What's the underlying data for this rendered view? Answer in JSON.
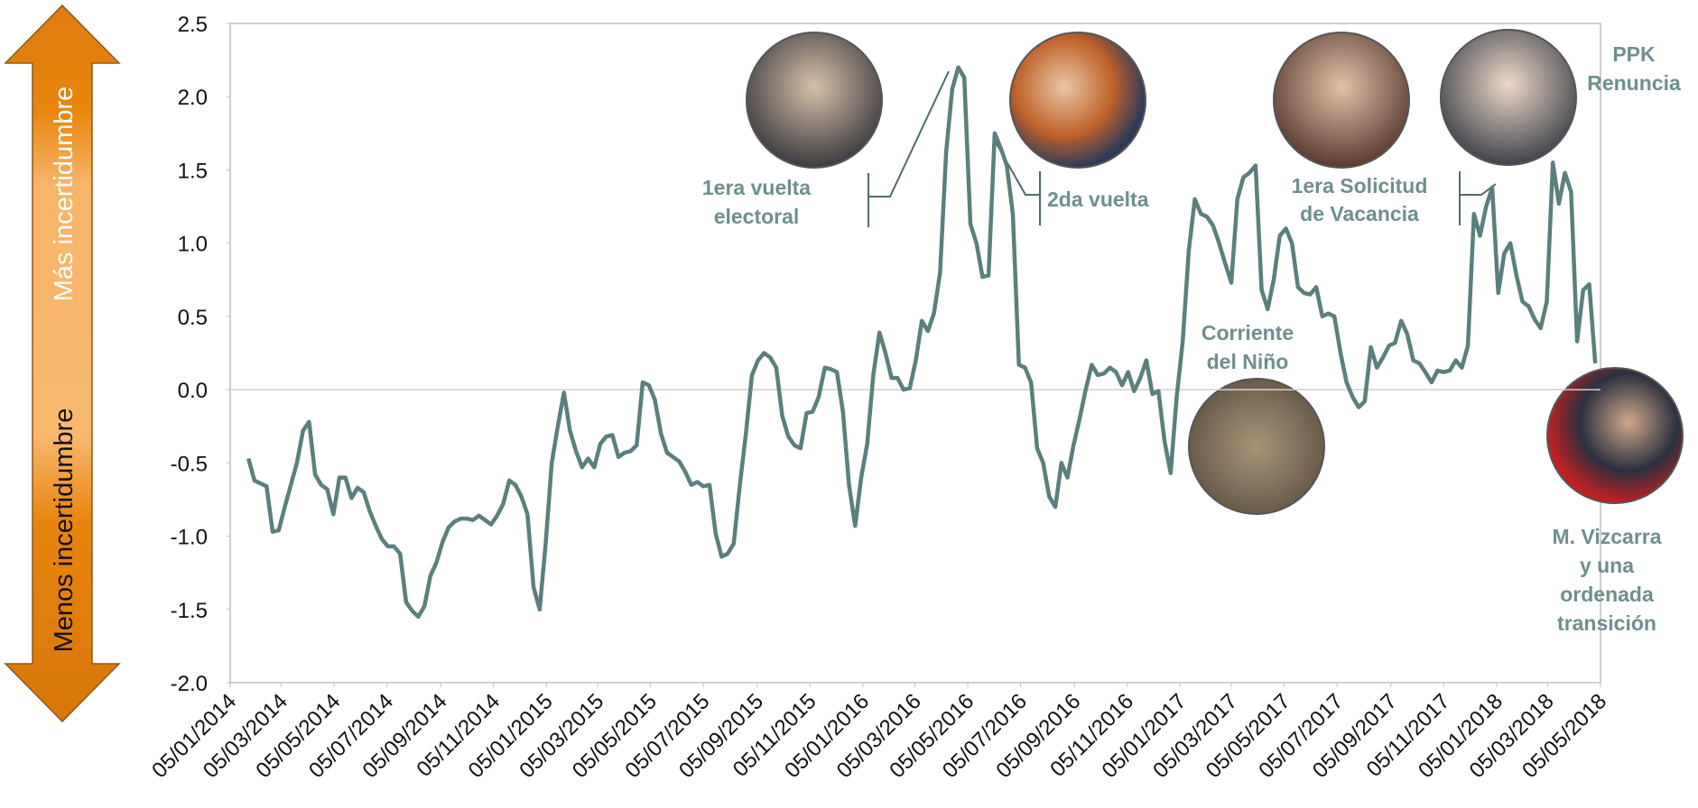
{
  "chart_data": {
    "type": "line",
    "x": [
      "26/01/2014",
      "02/02/2014",
      "09/02/2014",
      "16/02/2014",
      "23/02/2014",
      "02/03/2014",
      "09/03/2014",
      "16/03/2014",
      "23/03/2014",
      "30/03/2014",
      "06/04/2014",
      "13/04/2014",
      "20/04/2014",
      "27/04/2014",
      "04/05/2014",
      "11/05/2014",
      "18/05/2014",
      "25/05/2014",
      "01/06/2014",
      "08/06/2014",
      "15/06/2014",
      "22/06/2014",
      "29/06/2014",
      "06/07/2014",
      "13/07/2014",
      "20/07/2014",
      "27/07/2014",
      "03/08/2014",
      "10/08/2014",
      "17/08/2014",
      "24/08/2014",
      "31/08/2014",
      "07/09/2014",
      "14/09/2014",
      "21/09/2014",
      "28/09/2014",
      "05/10/2014",
      "12/10/2014",
      "19/10/2014",
      "26/10/2014",
      "02/11/2014",
      "09/11/2014",
      "16/11/2014",
      "23/11/2014",
      "30/11/2014",
      "07/12/2014",
      "14/12/2014",
      "21/12/2014",
      "28/12/2014",
      "04/01/2015",
      "11/01/2015",
      "18/01/2015",
      "25/01/2015",
      "01/02/2015",
      "08/02/2015",
      "15/02/2015",
      "22/02/2015",
      "01/03/2015",
      "08/03/2015",
      "15/03/2015",
      "22/03/2015",
      "29/03/2015",
      "05/04/2015",
      "12/04/2015",
      "19/04/2015",
      "26/04/2015",
      "03/05/2015",
      "10/05/2015",
      "17/05/2015",
      "24/05/2015",
      "31/05/2015",
      "07/06/2015",
      "14/06/2015",
      "21/06/2015",
      "28/06/2015",
      "05/07/2015",
      "12/07/2015",
      "19/07/2015",
      "26/07/2015",
      "02/08/2015",
      "09/08/2015",
      "16/08/2015",
      "23/08/2015",
      "30/08/2015",
      "06/09/2015",
      "13/09/2015",
      "20/09/2015",
      "27/09/2015",
      "04/10/2015",
      "11/10/2015",
      "18/10/2015",
      "25/10/2015",
      "01/11/2015",
      "08/11/2015",
      "15/11/2015",
      "22/11/2015",
      "29/11/2015",
      "06/12/2015",
      "13/12/2015",
      "20/12/2015",
      "27/12/2015",
      "03/01/2016",
      "10/01/2016",
      "17/01/2016",
      "24/01/2016",
      "31/01/2016",
      "07/02/2016",
      "14/02/2016",
      "21/02/2016",
      "28/02/2016",
      "06/03/2016",
      "13/03/2016",
      "20/03/2016",
      "27/03/2016",
      "03/04/2016",
      "10/04/2016",
      "17/04/2016",
      "24/04/2016",
      "01/05/2016",
      "08/05/2016",
      "15/05/2016",
      "22/05/2016",
      "29/05/2016",
      "05/06/2016",
      "12/06/2016",
      "19/06/2016",
      "26/06/2016",
      "03/07/2016",
      "10/07/2016",
      "17/07/2016",
      "24/07/2016",
      "31/07/2016",
      "07/08/2016",
      "14/08/2016",
      "21/08/2016",
      "28/08/2016",
      "04/09/2016",
      "11/09/2016",
      "18/09/2016",
      "25/09/2016",
      "02/10/2016",
      "09/10/2016",
      "16/10/2016",
      "23/10/2016",
      "30/10/2016",
      "06/11/2016",
      "13/11/2016",
      "20/11/2016",
      "27/11/2016",
      "04/12/2016",
      "11/12/2016",
      "18/12/2016",
      "25/12/2016",
      "01/01/2017",
      "08/01/2017",
      "15/01/2017",
      "22/01/2017",
      "29/01/2017",
      "05/02/2017",
      "12/02/2017",
      "19/02/2017",
      "26/02/2017",
      "05/03/2017",
      "12/03/2017",
      "19/03/2017",
      "26/03/2017",
      "02/04/2017",
      "09/04/2017",
      "16/04/2017",
      "23/04/2017",
      "30/04/2017",
      "07/05/2017",
      "14/05/2017",
      "21/05/2017",
      "28/05/2017",
      "04/06/2017",
      "11/06/2017",
      "18/06/2017",
      "25/06/2017",
      "02/07/2017",
      "09/07/2017",
      "16/07/2017",
      "23/07/2017",
      "30/07/2017",
      "06/08/2017",
      "13/08/2017",
      "20/08/2017",
      "27/08/2017",
      "03/09/2017",
      "10/09/2017",
      "17/09/2017",
      "24/09/2017",
      "01/10/2017",
      "08/10/2017",
      "15/10/2017",
      "22/10/2017",
      "29/10/2017",
      "05/11/2017",
      "12/11/2017",
      "19/11/2017",
      "26/11/2017",
      "03/12/2017",
      "10/12/2017",
      "17/12/2017",
      "24/12/2017",
      "31/12/2017",
      "07/01/2018",
      "14/01/2018",
      "21/01/2018",
      "28/01/2018",
      "04/02/2018",
      "11/02/2018",
      "18/02/2018",
      "25/02/2018",
      "04/03/2018",
      "11/03/2018",
      "18/03/2018",
      "25/03/2018",
      "01/04/2018",
      "08/04/2018",
      "15/04/2018",
      "22/04/2018",
      "29/04/2018"
    ],
    "series": [
      {
        "color": "#5b7f7d",
        "values": [
          -0.47,
          -0.62,
          -0.64,
          -0.66,
          -0.97,
          -0.96,
          -0.8,
          -0.65,
          -0.5,
          -0.28,
          -0.22,
          -0.58,
          -0.65,
          -0.68,
          -0.85,
          -0.6,
          -0.6,
          -0.74,
          -0.67,
          -0.7,
          -0.83,
          -0.93,
          -1.02,
          -1.07,
          -1.07,
          -1.12,
          -1.45,
          -1.51,
          -1.55,
          -1.48,
          -1.27,
          -1.18,
          -1.04,
          -0.94,
          -0.9,
          -0.88,
          -0.88,
          -0.89,
          -0.86,
          -0.89,
          -0.92,
          -0.86,
          -0.78,
          -0.62,
          -0.65,
          -0.73,
          -0.85,
          -1.35,
          -1.5,
          -1.05,
          -0.5,
          -0.25,
          -0.02,
          -0.28,
          -0.42,
          -0.53,
          -0.47,
          -0.53,
          -0.37,
          -0.32,
          -0.31,
          -0.46,
          -0.43,
          -0.42,
          -0.38,
          0.05,
          0.03,
          -0.07,
          -0.3,
          -0.43,
          -0.46,
          -0.49,
          -0.56,
          -0.65,
          -0.63,
          -0.66,
          -0.65,
          -0.98,
          -1.14,
          -1.12,
          -1.05,
          -0.65,
          -0.3,
          0.1,
          0.2,
          0.25,
          0.22,
          0.15,
          -0.18,
          -0.32,
          -0.38,
          -0.4,
          -0.16,
          -0.15,
          -0.05,
          0.15,
          0.14,
          0.12,
          -0.15,
          -0.65,
          -0.93,
          -0.6,
          -0.37,
          0.1,
          0.39,
          0.25,
          0.08,
          0.08,
          0.0,
          0.01,
          0.2,
          0.47,
          0.4,
          0.52,
          0.8,
          1.62,
          2.05,
          2.2,
          2.13,
          1.13,
          1.0,
          0.77,
          0.78,
          1.75,
          1.65,
          1.53,
          1.2,
          0.17,
          0.15,
          0.05,
          -0.4,
          -0.5,
          -0.73,
          -0.8,
          -0.5,
          -0.6,
          -0.38,
          -0.2,
          0.0,
          0.17,
          0.1,
          0.11,
          0.15,
          0.12,
          0.03,
          0.12,
          -0.01,
          0.08,
          0.2,
          -0.03,
          -0.01,
          -0.35,
          -0.57,
          -0.05,
          0.33,
          0.95,
          1.3,
          1.2,
          1.18,
          1.12,
          1.0,
          0.86,
          0.73,
          1.3,
          1.45,
          1.48,
          1.53,
          0.68,
          0.55,
          0.75,
          1.05,
          1.1,
          1.0,
          0.7,
          0.66,
          0.65,
          0.7,
          0.5,
          0.52,
          0.5,
          0.25,
          0.05,
          -0.05,
          -0.12,
          -0.08,
          0.29,
          0.15,
          0.22,
          0.3,
          0.32,
          0.47,
          0.38,
          0.2,
          0.18,
          0.12,
          0.05,
          0.13,
          0.12,
          0.13,
          0.2,
          0.15,
          0.3,
          1.2,
          1.05,
          1.25,
          1.38,
          0.66,
          0.93,
          1.0,
          0.78,
          0.6,
          0.57,
          0.48,
          0.42,
          0.6,
          1.55,
          1.27,
          1.48,
          1.35,
          0.33,
          0.68,
          0.72,
          0.18
        ]
      }
    ],
    "xlim": [
      "05/01/2014",
      "05/05/2018"
    ],
    "xticks": [
      "05/01/2014",
      "05/03/2014",
      "05/05/2014",
      "05/07/2014",
      "05/09/2014",
      "05/11/2014",
      "05/01/2015",
      "05/03/2015",
      "05/05/2015",
      "05/07/2015",
      "05/09/2015",
      "05/11/2015",
      "05/01/2016",
      "05/03/2016",
      "05/05/2016",
      "05/07/2016",
      "05/09/2016",
      "05/11/2016",
      "05/01/2017",
      "05/03/2017",
      "05/05/2017",
      "05/07/2017",
      "05/09/2017",
      "05/11/2017",
      "05/01/2018",
      "05/03/2018",
      "05/05/2018"
    ],
    "ylim": [
      -2,
      2.5
    ],
    "yticks": [
      {
        "value": -2,
        "label": "-2.0"
      },
      -1.5,
      {
        "value": -1,
        "label": "-1.0"
      },
      -0.5,
      {
        "value": 0,
        "label": "0.0"
      },
      0.5,
      {
        "value": 1,
        "label": "1.0"
      },
      1.5,
      {
        "value": 2,
        "label": "2.0"
      },
      2.5
    ],
    "zero_line": true,
    "uncertainty_arrow": {
      "up": "Más incertidumbre",
      "down": "Menos incertidumbre"
    },
    "annotations": [
      {
        "lines": [
          "1era vuelta",
          "electoral"
        ]
      },
      {
        "lines": [
          "2da vuelta"
        ]
      },
      {
        "lines": [
          "1era Solicitud",
          "de Vacancia"
        ]
      },
      {
        "lines": [
          "PPK",
          "Renuncia"
        ]
      },
      {
        "lines": [
          "Corriente",
          "del Niño"
        ]
      },
      {
        "lines": [
          "M. Vizcarra",
          "y una",
          "ordenada",
          "transición"
        ]
      }
    ]
  }
}
